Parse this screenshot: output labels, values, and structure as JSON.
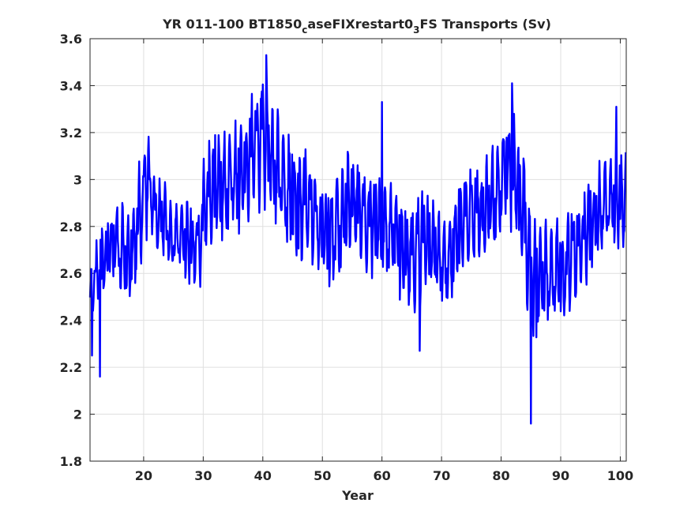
{
  "chart_data": {
    "type": "line",
    "title": "YR 011-100 BT1850",
    "title_sub": "c",
    "title_mid": "aseFIXrestart0",
    "title_sub2": "3",
    "title_end": "FS Transports (Sv)",
    "xlabel": "Year",
    "ylabel": "",
    "xlim": [
      11,
      101
    ],
    "ylim": [
      1.8,
      3.6
    ],
    "xticks": [
      20,
      30,
      40,
      50,
      60,
      70,
      80,
      90,
      100
    ],
    "yticks": [
      1.8,
      2,
      2.2,
      2.4,
      2.6,
      2.8,
      3,
      3.2,
      3.4,
      3.6
    ],
    "xtick_labels": [
      "20",
      "30",
      "40",
      "50",
      "60",
      "70",
      "80",
      "90",
      "100"
    ],
    "ytick_labels": [
      "1.8",
      "2",
      "2.2",
      "2.4",
      "2.6",
      "2.8",
      "3",
      "3.2",
      "3.4",
      "3.6"
    ],
    "grid": true,
    "line_color": "#0000ff",
    "series": [
      {
        "samples_per_year": 12,
        "year_mean": [
          2.52,
          2.58,
          2.64,
          2.7,
          2.74,
          2.72,
          2.68,
          2.74,
          2.84,
          2.96,
          2.9,
          2.82,
          2.84,
          2.78,
          2.78,
          2.8,
          2.74,
          2.7,
          2.72,
          2.86,
          2.94,
          2.98,
          3.0,
          3.04,
          3.02,
          3.0,
          3.06,
          3.1,
          3.14,
          3.18,
          3.12,
          3.06,
          3.02,
          2.98,
          2.92,
          2.88,
          2.86,
          2.82,
          2.78,
          2.76,
          2.8,
          2.84,
          2.88,
          2.9,
          2.88,
          2.86,
          2.82,
          2.8,
          2.82,
          2.84,
          2.8,
          2.76,
          2.7,
          2.66,
          2.66,
          2.7,
          2.72,
          2.72,
          2.7,
          2.68,
          2.7,
          2.74,
          2.78,
          2.8,
          2.82,
          2.84,
          2.88,
          2.92,
          2.98,
          3.04,
          3.06,
          3.0,
          2.84,
          2.66,
          2.56,
          2.58,
          2.62,
          2.64,
          2.62,
          2.6,
          2.64,
          2.68,
          2.72,
          2.78,
          2.84,
          2.88,
          2.92,
          2.94,
          2.9,
          2.9
        ],
        "year_amplitude": [
          0.16,
          0.18,
          0.2,
          0.18,
          0.18,
          0.2,
          0.22,
          0.22,
          0.24,
          0.22,
          0.18,
          0.18,
          0.18,
          0.16,
          0.14,
          0.16,
          0.18,
          0.16,
          0.18,
          0.22,
          0.24,
          0.26,
          0.26,
          0.26,
          0.26,
          0.26,
          0.26,
          0.26,
          0.28,
          0.3,
          0.28,
          0.26,
          0.26,
          0.26,
          0.26,
          0.26,
          0.26,
          0.24,
          0.22,
          0.24,
          0.26,
          0.26,
          0.26,
          0.26,
          0.24,
          0.22,
          0.22,
          0.22,
          0.24,
          0.24,
          0.24,
          0.22,
          0.22,
          0.22,
          0.24,
          0.24,
          0.22,
          0.2,
          0.2,
          0.2,
          0.22,
          0.24,
          0.24,
          0.24,
          0.24,
          0.24,
          0.24,
          0.24,
          0.24,
          0.26,
          0.28,
          0.3,
          0.28,
          0.26,
          0.3,
          0.26,
          0.24,
          0.22,
          0.22,
          0.22,
          0.24,
          0.22,
          0.22,
          0.22,
          0.22,
          0.2,
          0.2,
          0.2,
          0.22,
          0.22
        ],
        "spikes": [
          {
            "x": 12.7,
            "y": 2.16
          },
          {
            "x": 11.3,
            "y": 2.25
          },
          {
            "x": 40.6,
            "y": 3.53
          },
          {
            "x": 81.8,
            "y": 3.41
          },
          {
            "x": 85.0,
            "y": 1.96
          },
          {
            "x": 66.3,
            "y": 2.27
          },
          {
            "x": 60.0,
            "y": 3.33
          },
          {
            "x": 99.3,
            "y": 3.31
          }
        ]
      }
    ]
  }
}
